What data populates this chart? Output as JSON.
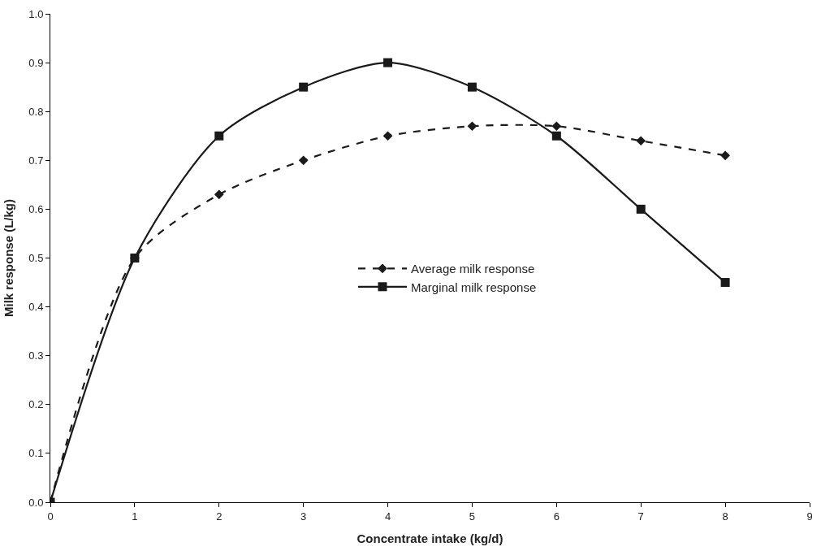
{
  "chart_data": {
    "type": "line",
    "xlabel": "Concentrate intake (kg/d)",
    "ylabel": "Milk response (L/kg)",
    "x": [
      0,
      1,
      2,
      3,
      4,
      5,
      6,
      7,
      8
    ],
    "xlim": [
      0,
      9
    ],
    "xticks": [
      0,
      1,
      2,
      3,
      4,
      5,
      6,
      7,
      8,
      9
    ],
    "ylim": [
      0,
      1
    ],
    "yticks": [
      {
        "value": 0,
        "label": "0.0"
      },
      0.1,
      0.2,
      0.3,
      0.4,
      0.5,
      0.6,
      0.7,
      0.8,
      0.9,
      {
        "value": 1,
        "label": "1.0"
      }
    ],
    "legend": "center",
    "series": [
      {
        "name": "Average milk response",
        "color": "#1a1a1a",
        "marker": "diamond",
        "line_style": "dashed",
        "values": [
          0,
          0.5,
          0.63,
          0.7,
          0.75,
          0.77,
          0.77,
          0.74,
          0.71
        ]
      },
      {
        "name": "Marginal milk response",
        "color": "#1a1a1a",
        "marker": "square",
        "line_style": "solid",
        "values": [
          0,
          0.5,
          0.75,
          0.85,
          0.9,
          0.85,
          0.75,
          0.6,
          0.45
        ]
      }
    ]
  }
}
